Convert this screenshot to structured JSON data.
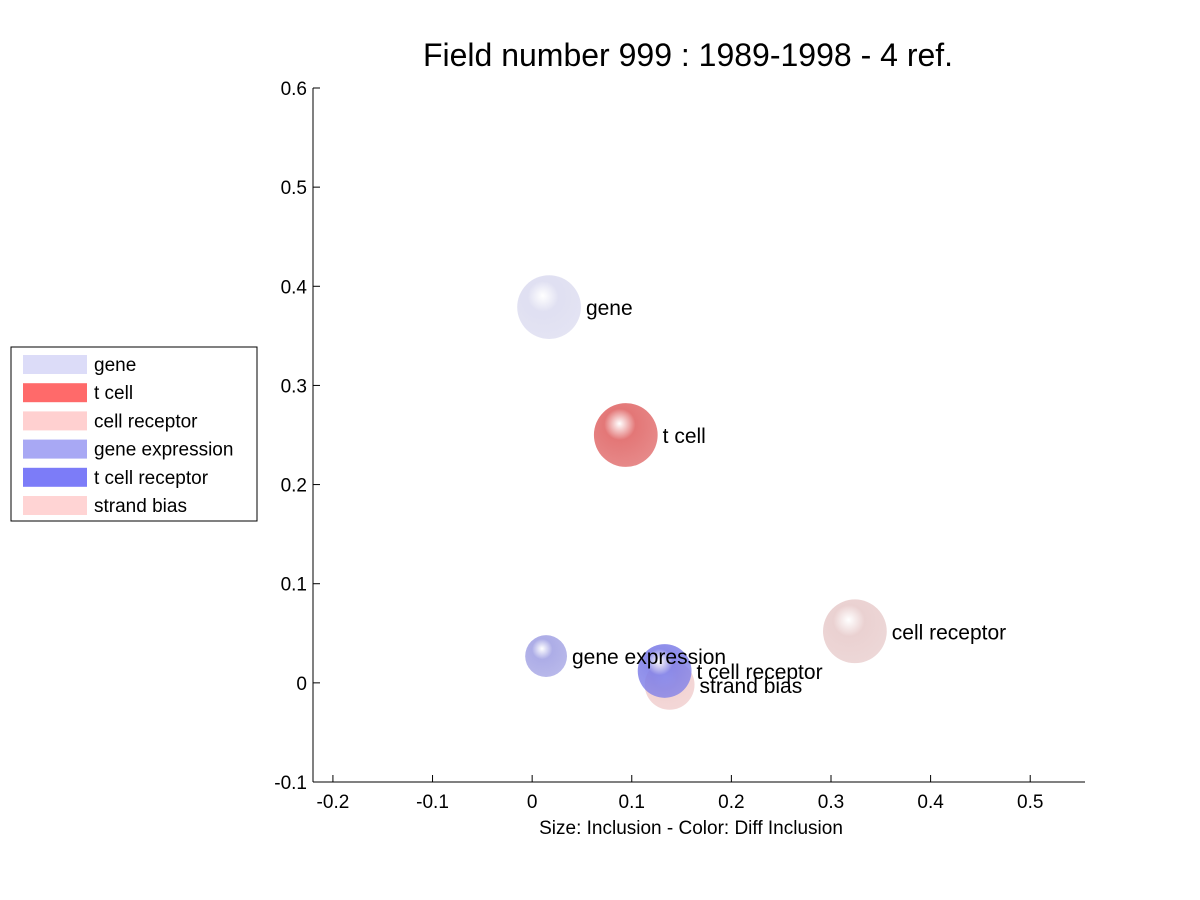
{
  "chart_data": {
    "type": "scatter",
    "title": "Field number 999 : 1989-1998  - 4 ref.",
    "xlabel": "Size: Inclusion - Color: Diff Inclusion",
    "ylabel": "",
    "xlim": [
      -0.22,
      0.555
    ],
    "ylim": [
      -0.1,
      0.6
    ],
    "x_ticks": [
      "-0.2",
      "-0.1",
      "0",
      "0.1",
      "0.2",
      "0.3",
      "0.4",
      "0.5"
    ],
    "y_ticks": [
      "-0.1",
      "0",
      "0.1",
      "0.2",
      "0.3",
      "0.4",
      "0.5",
      "0.6"
    ],
    "grid": false,
    "legend_position": "left",
    "legend": [
      {
        "label": "gene",
        "color": "#dcdcf8"
      },
      {
        "label": "t cell",
        "color": "#ff6a6a"
      },
      {
        "label": "cell receptor",
        "color": "#ffd0d0"
      },
      {
        "label": "gene expression",
        "color": "#a8a8f4"
      },
      {
        "label": "t cell receptor",
        "color": "#7c7cf8"
      },
      {
        "label": "strand bias",
        "color": "#ffd4d4"
      }
    ],
    "points": [
      {
        "label": "gene",
        "x": 0.017,
        "y": 0.379,
        "size": 0.032,
        "color": "#dcdcf0"
      },
      {
        "label": "t cell",
        "x": 0.094,
        "y": 0.25,
        "size": 0.032,
        "color": "#e06868"
      },
      {
        "label": "cell receptor",
        "x": 0.324,
        "y": 0.052,
        "size": 0.032,
        "color": "#e8cccc"
      },
      {
        "label": "gene expression",
        "x": 0.014,
        "y": 0.027,
        "size": 0.021,
        "color": "#a4a4e4"
      },
      {
        "label": "strand bias",
        "x": 0.138,
        "y": -0.002,
        "size": 0.025,
        "color": "#f0cccc"
      },
      {
        "label": "t cell receptor",
        "x": 0.133,
        "y": 0.012,
        "size": 0.027,
        "color": "#8080e8"
      }
    ]
  }
}
